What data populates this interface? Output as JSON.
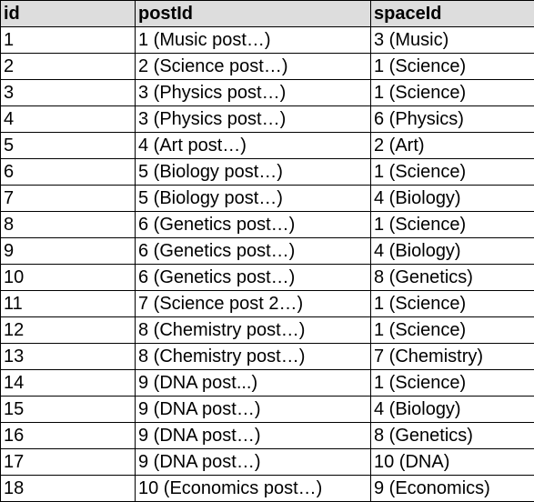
{
  "table": {
    "headers": [
      "id",
      "postId",
      "spaceId"
    ],
    "rows": [
      [
        "1",
        "1 (Music post…)",
        "3 (Music)"
      ],
      [
        "2",
        "2 (Science post…)",
        "1 (Science)"
      ],
      [
        "3",
        "3 (Physics post…)",
        "1 (Science)"
      ],
      [
        "4",
        "3 (Physics post…)",
        "6 (Physics)"
      ],
      [
        "5",
        "4 (Art post…)",
        "2 (Art)"
      ],
      [
        "6",
        "5 (Biology post…)",
        "1 (Science)"
      ],
      [
        "7",
        "5 (Biology post…)",
        "4 (Biology)"
      ],
      [
        "8",
        "6 (Genetics post…)",
        "1 (Science)"
      ],
      [
        "9",
        "6 (Genetics post…)",
        "4 (Biology)"
      ],
      [
        "10",
        "6 (Genetics post…)",
        "8 (Genetics)"
      ],
      [
        "11",
        "7 (Science post 2…)",
        "1 (Science)"
      ],
      [
        "12",
        "8 (Chemistry post…)",
        "1 (Science)"
      ],
      [
        "13",
        "8 (Chemistry post…)",
        "7 (Chemistry)"
      ],
      [
        "14",
        "9 (DNA post...)",
        "1 (Science)"
      ],
      [
        "15",
        "9 (DNA post…)",
        "4 (Biology)"
      ],
      [
        "16",
        "9 (DNA post…)",
        "8 (Genetics)"
      ],
      [
        "17",
        "9 (DNA post…)",
        "10 (DNA)"
      ],
      [
        "18",
        "10 (Economics post…)",
        "9 (Economics)"
      ]
    ]
  }
}
